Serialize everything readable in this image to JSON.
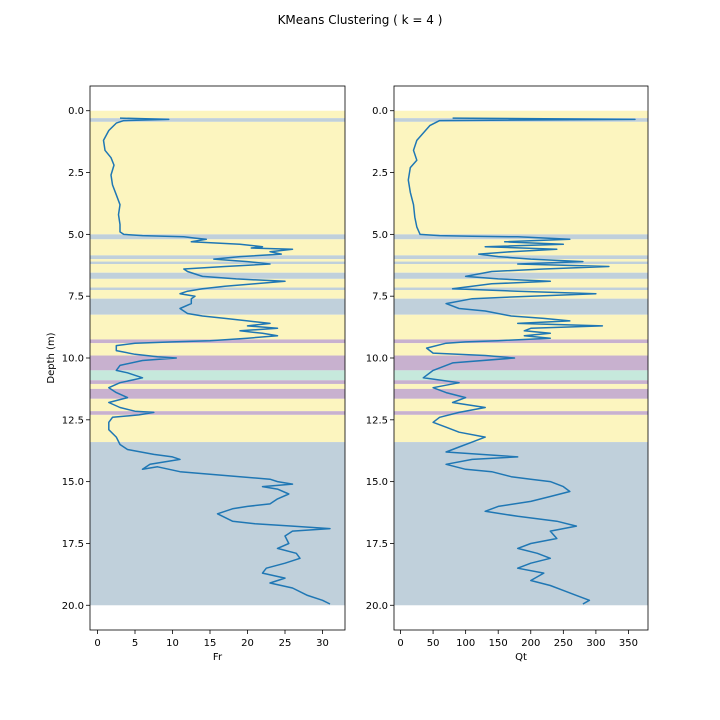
{
  "title": "KMeans Clustering ( k = 4 )",
  "chart_data": [
    {
      "type": "line",
      "xlabel": "Fr",
      "ylabel": "Depth (m)",
      "xlim": [
        -1,
        33
      ],
      "ylim": [
        21,
        -1
      ],
      "xticks": [
        0,
        5,
        10,
        15,
        20,
        25,
        30
      ],
      "yticks": [
        0.0,
        2.5,
        5.0,
        7.5,
        10.0,
        12.5,
        15.0,
        17.5,
        20.0
      ],
      "series": [
        {
          "color": "#1f77b4",
          "points": [
            [
              3.0,
              0.3
            ],
            [
              9.5,
              0.35
            ],
            [
              3.5,
              0.4
            ],
            [
              2.5,
              0.5
            ],
            [
              1.5,
              0.8
            ],
            [
              0.8,
              1.2
            ],
            [
              1.0,
              1.6
            ],
            [
              1.8,
              1.9
            ],
            [
              2.2,
              2.2
            ],
            [
              1.8,
              2.6
            ],
            [
              2.0,
              3.0
            ],
            [
              2.5,
              3.4
            ],
            [
              3.0,
              3.8
            ],
            [
              2.8,
              4.2
            ],
            [
              3.0,
              4.6
            ],
            [
              3.0,
              4.9
            ],
            [
              3.5,
              5.0
            ],
            [
              6,
              5.05
            ],
            [
              9,
              5.08
            ],
            [
              11.5,
              5.1
            ],
            [
              13,
              5.15
            ],
            [
              14.5,
              5.2
            ],
            [
              12.5,
              5.3
            ],
            [
              19,
              5.4
            ],
            [
              22,
              5.5
            ],
            [
              20.5,
              5.55
            ],
            [
              26,
              5.6
            ],
            [
              23,
              5.7
            ],
            [
              24.5,
              5.8
            ],
            [
              19,
              5.9
            ],
            [
              15.5,
              6.0
            ],
            [
              20,
              6.1
            ],
            [
              23,
              6.2
            ],
            [
              17,
              6.3
            ],
            [
              11.5,
              6.4
            ],
            [
              12,
              6.5
            ],
            [
              14,
              6.7
            ],
            [
              18.5,
              6.8
            ],
            [
              25,
              6.9
            ],
            [
              21,
              7.0
            ],
            [
              17,
              7.1
            ],
            [
              14,
              7.2
            ],
            [
              12,
              7.3
            ],
            [
              11,
              7.4
            ],
            [
              13,
              7.5
            ],
            [
              12.5,
              7.6
            ],
            [
              12.5,
              7.8
            ],
            [
              11,
              8.0
            ],
            [
              12,
              8.2
            ],
            [
              14,
              8.3
            ],
            [
              17,
              8.4
            ],
            [
              20,
              8.5
            ],
            [
              23,
              8.6
            ],
            [
              20,
              8.7
            ],
            [
              24,
              8.8
            ],
            [
              19,
              8.9
            ],
            [
              22,
              9.0
            ],
            [
              24,
              9.1
            ],
            [
              20,
              9.2
            ],
            [
              15,
              9.3
            ],
            [
              10,
              9.35
            ],
            [
              5,
              9.4
            ],
            [
              2.5,
              9.5
            ],
            [
              2.5,
              9.7
            ],
            [
              5,
              9.85
            ],
            [
              8,
              9.95
            ],
            [
              10.5,
              10.0
            ],
            [
              6,
              10.1
            ],
            [
              3,
              10.3
            ],
            [
              2.5,
              10.5
            ],
            [
              4,
              10.6
            ],
            [
              6,
              10.8
            ],
            [
              3,
              11.0
            ],
            [
              1.5,
              11.2
            ],
            [
              2.5,
              11.4
            ],
            [
              4,
              11.6
            ],
            [
              1.5,
              11.8
            ],
            [
              3,
              12.0
            ],
            [
              5,
              12.15
            ],
            [
              7.5,
              12.2
            ],
            [
              5.5,
              12.3
            ],
            [
              2,
              12.4
            ],
            [
              1.5,
              12.6
            ],
            [
              1.5,
              12.9
            ],
            [
              2.5,
              13.2
            ],
            [
              3,
              13.5
            ],
            [
              4,
              13.7
            ],
            [
              7.5,
              13.9
            ],
            [
              10,
              14.0
            ],
            [
              11,
              14.1
            ],
            [
              7,
              14.3
            ],
            [
              6,
              14.5
            ],
            [
              8,
              14.4
            ],
            [
              11,
              14.6
            ],
            [
              15,
              14.7
            ],
            [
              19,
              14.8
            ],
            [
              23,
              14.9
            ],
            [
              24,
              15.0
            ],
            [
              26,
              15.1
            ],
            [
              22,
              15.2
            ],
            [
              24,
              15.3
            ],
            [
              25.5,
              15.5
            ],
            [
              24,
              15.7
            ],
            [
              23,
              15.9
            ],
            [
              20,
              16.0
            ],
            [
              18,
              16.1
            ],
            [
              16,
              16.3
            ],
            [
              18,
              16.6
            ],
            [
              21,
              16.7
            ],
            [
              26,
              16.8
            ],
            [
              31,
              16.9
            ],
            [
              26,
              17.0
            ],
            [
              25,
              17.2
            ],
            [
              25.5,
              17.5
            ],
            [
              24,
              17.7
            ],
            [
              26.5,
              17.9
            ],
            [
              27,
              18.1
            ],
            [
              25,
              18.3
            ],
            [
              22.5,
              18.5
            ],
            [
              22,
              18.7
            ],
            [
              25,
              18.9
            ],
            [
              23,
              19.1
            ],
            [
              26,
              19.3
            ],
            [
              28,
              19.6
            ],
            [
              30,
              19.8
            ],
            [
              31,
              19.95
            ]
          ]
        }
      ]
    },
    {
      "type": "line",
      "xlabel": "Qt",
      "ylabel": "",
      "xlim": [
        -10,
        380
      ],
      "ylim": [
        21,
        -1
      ],
      "xticks": [
        0,
        50,
        100,
        150,
        200,
        250,
        300,
        350
      ],
      "yticks": [
        0.0,
        2.5,
        5.0,
        7.5,
        10.0,
        12.5,
        15.0,
        17.5,
        20.0
      ],
      "series": [
        {
          "color": "#1f77b4",
          "points": [
            [
              80,
              0.3
            ],
            [
              360,
              0.35
            ],
            [
              60,
              0.4
            ],
            [
              45,
              0.6
            ],
            [
              35,
              0.9
            ],
            [
              25,
              1.2
            ],
            [
              20,
              1.6
            ],
            [
              25,
              2.0
            ],
            [
              15,
              2.3
            ],
            [
              12,
              2.8
            ],
            [
              15,
              3.3
            ],
            [
              20,
              3.8
            ],
            [
              22,
              4.3
            ],
            [
              25,
              4.7
            ],
            [
              30,
              5.0
            ],
            [
              60,
              5.05
            ],
            [
              110,
              5.08
            ],
            [
              180,
              5.1
            ],
            [
              260,
              5.2
            ],
            [
              160,
              5.3
            ],
            [
              250,
              5.4
            ],
            [
              130,
              5.5
            ],
            [
              240,
              5.6
            ],
            [
              170,
              5.7
            ],
            [
              120,
              5.8
            ],
            [
              150,
              5.9
            ],
            [
              200,
              6.0
            ],
            [
              280,
              6.1
            ],
            [
              180,
              6.2
            ],
            [
              320,
              6.3
            ],
            [
              220,
              6.4
            ],
            [
              140,
              6.5
            ],
            [
              100,
              6.7
            ],
            [
              150,
              6.8
            ],
            [
              230,
              6.9
            ],
            [
              140,
              7.0
            ],
            [
              110,
              7.1
            ],
            [
              80,
              7.2
            ],
            [
              180,
              7.3
            ],
            [
              300,
              7.4
            ],
            [
              200,
              7.5
            ],
            [
              110,
              7.6
            ],
            [
              70,
              7.8
            ],
            [
              90,
              8.0
            ],
            [
              130,
              8.1
            ],
            [
              170,
              8.3
            ],
            [
              220,
              8.4
            ],
            [
              260,
              8.5
            ],
            [
              180,
              8.6
            ],
            [
              310,
              8.7
            ],
            [
              200,
              8.8
            ],
            [
              190,
              8.9
            ],
            [
              230,
              9.0
            ],
            [
              190,
              9.1
            ],
            [
              230,
              9.2
            ],
            [
              150,
              9.3
            ],
            [
              100,
              9.35
            ],
            [
              70,
              9.4
            ],
            [
              40,
              9.6
            ],
            [
              50,
              9.8
            ],
            [
              130,
              9.9
            ],
            [
              175,
              10.0
            ],
            [
              80,
              10.2
            ],
            [
              50,
              10.5
            ],
            [
              35,
              10.8
            ],
            [
              90,
              11.0
            ],
            [
              50,
              11.2
            ],
            [
              70,
              11.4
            ],
            [
              100,
              11.6
            ],
            [
              80,
              11.8
            ],
            [
              130,
              12.0
            ],
            [
              90,
              12.2
            ],
            [
              60,
              12.4
            ],
            [
              50,
              12.6
            ],
            [
              70,
              12.8
            ],
            [
              90,
              13.0
            ],
            [
              130,
              13.2
            ],
            [
              110,
              13.4
            ],
            [
              90,
              13.6
            ],
            [
              70,
              13.8
            ],
            [
              180,
              14.0
            ],
            [
              110,
              14.1
            ],
            [
              70,
              14.3
            ],
            [
              100,
              14.5
            ],
            [
              140,
              14.6
            ],
            [
              170,
              14.8
            ],
            [
              200,
              14.9
            ],
            [
              230,
              15.0
            ],
            [
              250,
              15.2
            ],
            [
              260,
              15.4
            ],
            [
              230,
              15.6
            ],
            [
              200,
              15.8
            ],
            [
              150,
              16.0
            ],
            [
              130,
              16.2
            ],
            [
              180,
              16.4
            ],
            [
              240,
              16.6
            ],
            [
              270,
              16.8
            ],
            [
              230,
              17.0
            ],
            [
              240,
              17.3
            ],
            [
              200,
              17.5
            ],
            [
              180,
              17.7
            ],
            [
              210,
              17.9
            ],
            [
              230,
              18.1
            ],
            [
              200,
              18.3
            ],
            [
              180,
              18.5
            ],
            [
              220,
              18.7
            ],
            [
              200,
              19.0
            ],
            [
              230,
              19.2
            ],
            [
              250,
              19.4
            ],
            [
              270,
              19.6
            ],
            [
              290,
              19.8
            ],
            [
              280,
              19.95
            ]
          ]
        }
      ]
    }
  ],
  "clusters": {
    "colors": {
      "c0": "#fcf5bf",
      "c1": "#c0d0db",
      "c2": "#c8b1cf",
      "c3": "#c6e9dc"
    },
    "zones": [
      {
        "top": 0.0,
        "bottom": 0.3,
        "cluster": "c0"
      },
      {
        "top": 0.3,
        "bottom": 0.45,
        "cluster": "c1"
      },
      {
        "top": 0.45,
        "bottom": 5.0,
        "cluster": "c0"
      },
      {
        "top": 5.0,
        "bottom": 5.2,
        "cluster": "c1"
      },
      {
        "top": 5.2,
        "bottom": 5.85,
        "cluster": "c0"
      },
      {
        "top": 5.85,
        "bottom": 6.0,
        "cluster": "c1"
      },
      {
        "top": 6.0,
        "bottom": 6.1,
        "cluster": "c0"
      },
      {
        "top": 6.1,
        "bottom": 6.2,
        "cluster": "c1"
      },
      {
        "top": 6.2,
        "bottom": 6.55,
        "cluster": "c0"
      },
      {
        "top": 6.55,
        "bottom": 6.8,
        "cluster": "c1"
      },
      {
        "top": 6.8,
        "bottom": 7.15,
        "cluster": "c0"
      },
      {
        "top": 7.15,
        "bottom": 7.25,
        "cluster": "c1"
      },
      {
        "top": 7.25,
        "bottom": 7.6,
        "cluster": "c0"
      },
      {
        "top": 7.6,
        "bottom": 8.25,
        "cluster": "c1"
      },
      {
        "top": 8.25,
        "bottom": 9.25,
        "cluster": "c0"
      },
      {
        "top": 9.25,
        "bottom": 9.4,
        "cluster": "c2"
      },
      {
        "top": 9.4,
        "bottom": 9.9,
        "cluster": "c0"
      },
      {
        "top": 9.9,
        "bottom": 10.5,
        "cluster": "c2"
      },
      {
        "top": 10.5,
        "bottom": 10.9,
        "cluster": "c3"
      },
      {
        "top": 10.9,
        "bottom": 11.05,
        "cluster": "c2"
      },
      {
        "top": 11.05,
        "bottom": 11.25,
        "cluster": "c0"
      },
      {
        "top": 11.25,
        "bottom": 11.65,
        "cluster": "c2"
      },
      {
        "top": 11.65,
        "bottom": 12.15,
        "cluster": "c0"
      },
      {
        "top": 12.15,
        "bottom": 12.3,
        "cluster": "c2"
      },
      {
        "top": 12.3,
        "bottom": 13.4,
        "cluster": "c0"
      },
      {
        "top": 13.4,
        "bottom": 20.0,
        "cluster": "c1"
      }
    ]
  }
}
